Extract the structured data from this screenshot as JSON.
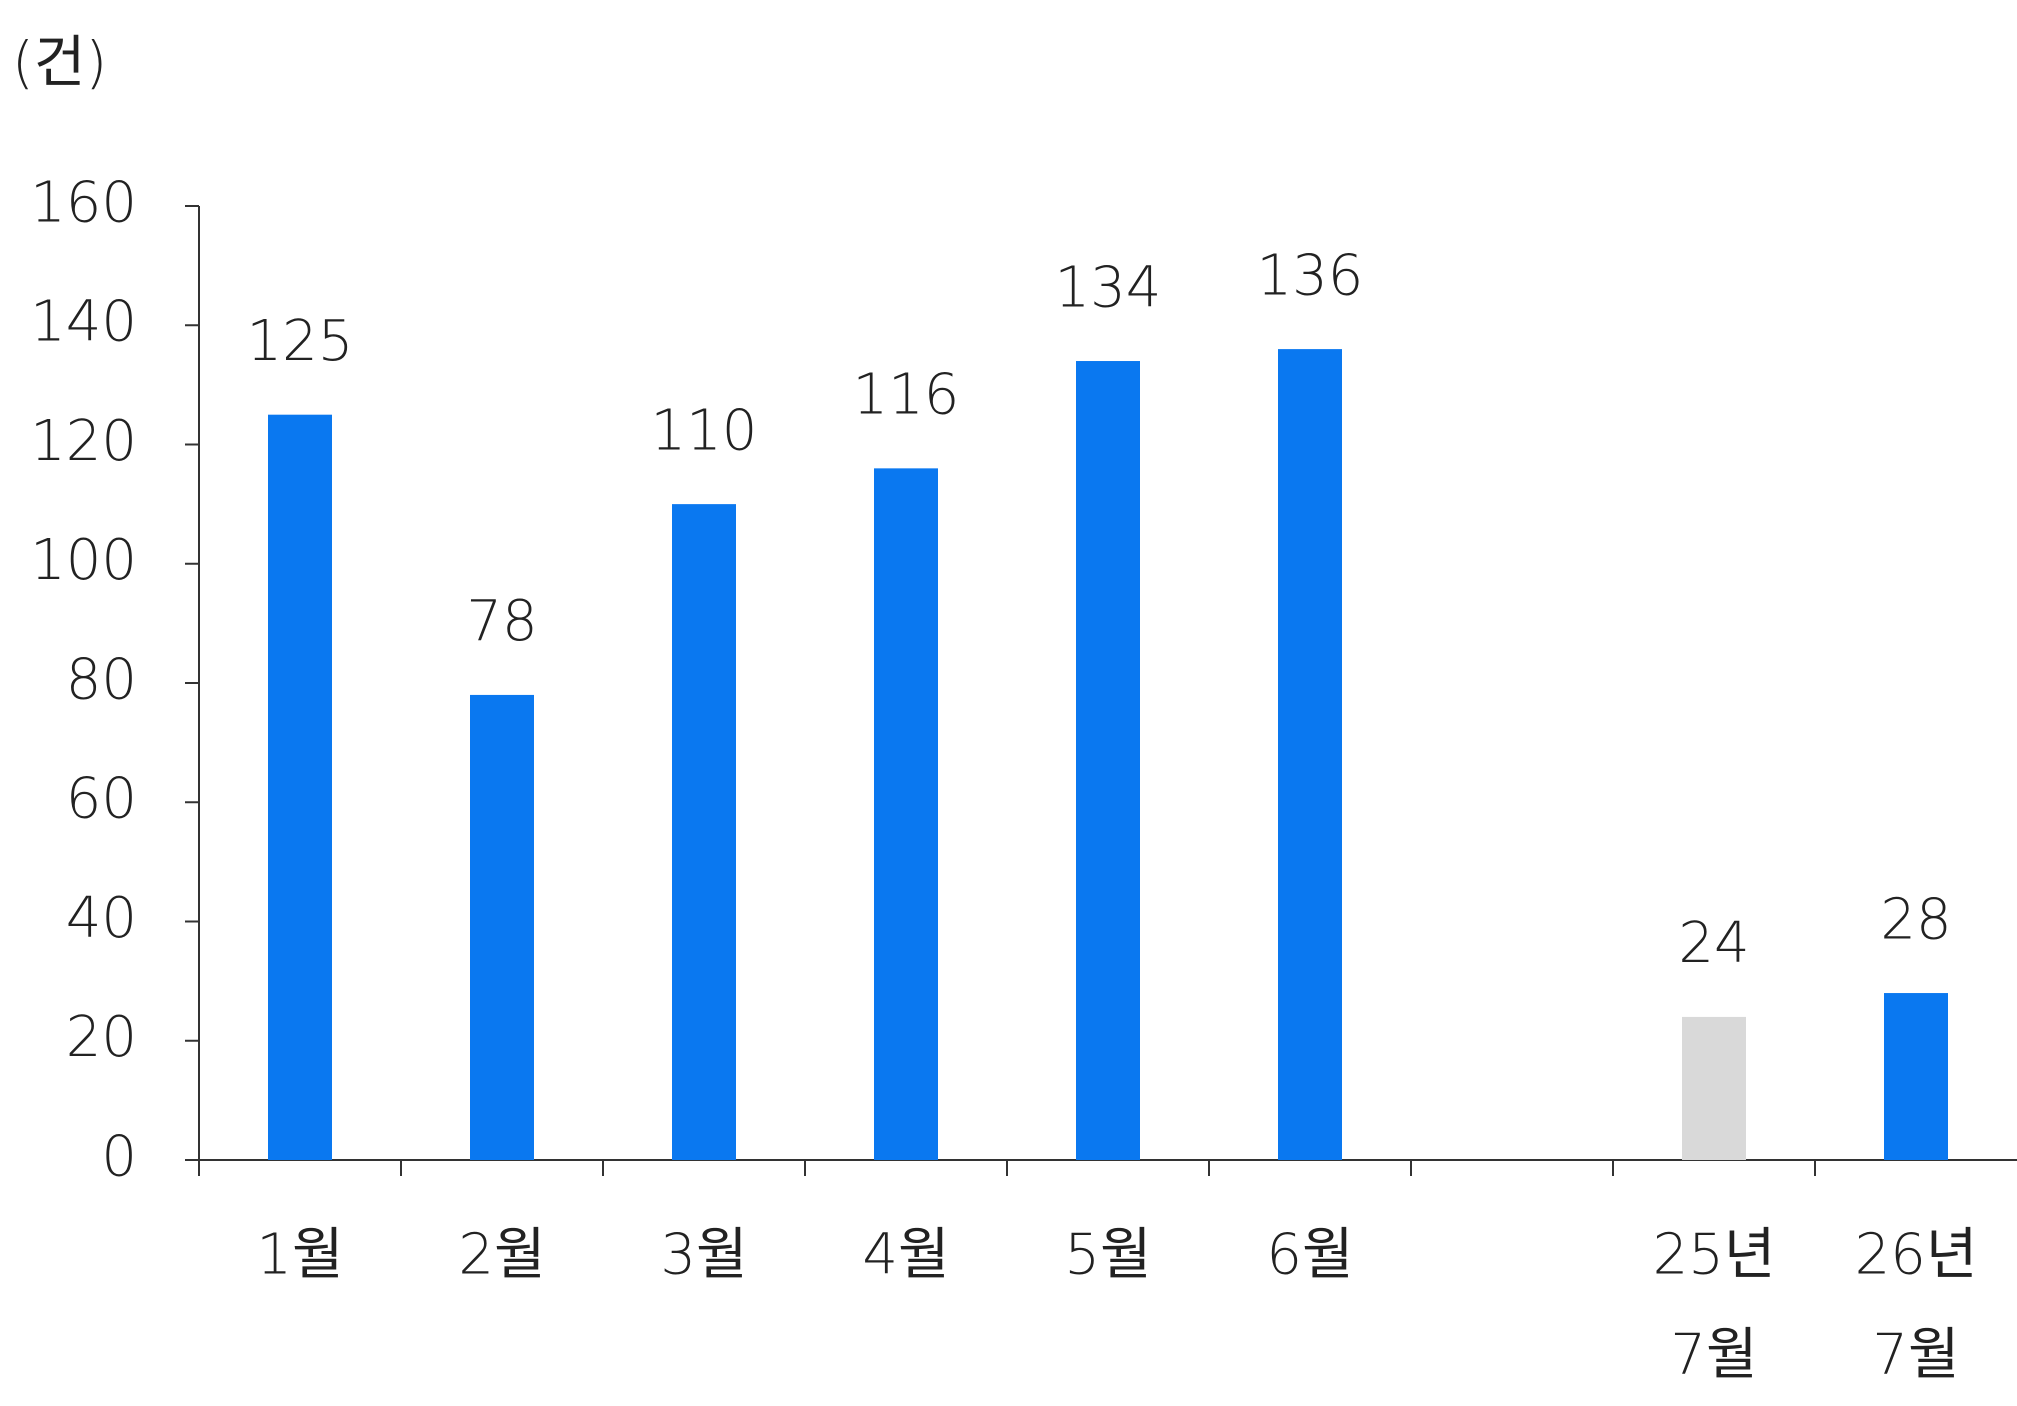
{
  "chart_data": {
    "type": "bar",
    "unit_label": "(건)",
    "categories": [
      [
        "1월"
      ],
      [
        "2월"
      ],
      [
        "3월"
      ],
      [
        "4월"
      ],
      [
        "5월"
      ],
      [
        "6월"
      ],
      null,
      [
        "25년",
        "7월"
      ],
      [
        "26년",
        "7월"
      ]
    ],
    "values": [
      125,
      78,
      110,
      116,
      134,
      136,
      null,
      24,
      28
    ],
    "colors": [
      "#0a78f0",
      "#0a78f0",
      "#0a78f0",
      "#0a78f0",
      "#0a78f0",
      "#0a78f0",
      null,
      "#d9d9d9",
      "#0a78f0"
    ],
    "ylim": [
      0,
      160
    ],
    "yticks": [
      0,
      20,
      40,
      60,
      80,
      100,
      120,
      140,
      160
    ],
    "grid": false
  }
}
